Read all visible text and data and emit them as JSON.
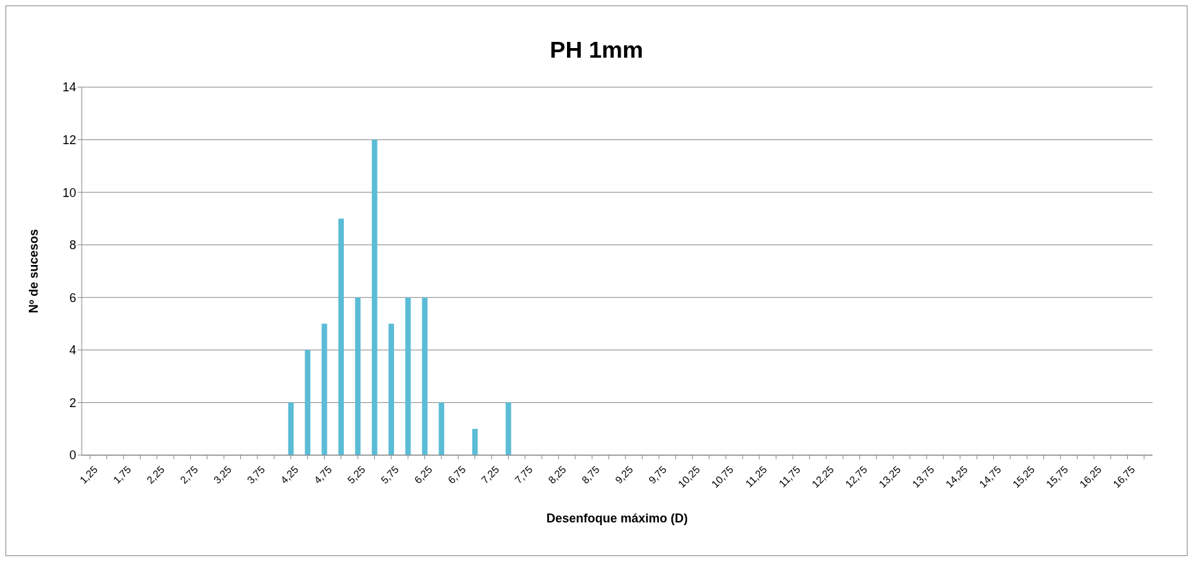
{
  "chart_data": {
    "type": "bar",
    "title": "PH 1mm",
    "xlabel": "Desenfoque máximo (D)",
    "ylabel": "Nº de sucesos",
    "categories": [
      "1,25",
      null,
      "1,75",
      null,
      "2,25",
      null,
      "2,75",
      null,
      "3,25",
      null,
      "3,75",
      null,
      "4,25",
      null,
      "4,75",
      null,
      "5,25",
      null,
      "5,75",
      null,
      "6,25",
      null,
      "6,75",
      null,
      "7,25",
      null,
      "7,75",
      null,
      "8,25",
      null,
      "8,75",
      null,
      "9,25",
      null,
      "9,75",
      null,
      "10,25",
      null,
      "10,75",
      null,
      "11,25",
      null,
      "11,75",
      null,
      "12,25",
      null,
      "12,75",
      null,
      "13,25",
      null,
      "13,75",
      null,
      "14,25",
      null,
      "14,75",
      null,
      "15,25",
      null,
      "15,75",
      null,
      "16,25",
      null,
      "16,75",
      null
    ],
    "values": [
      0,
      0,
      0,
      0,
      0,
      0,
      0,
      0,
      0,
      0,
      0,
      0,
      2,
      4,
      5,
      9,
      6,
      12,
      5,
      6,
      6,
      2,
      0,
      1,
      0,
      2,
      0,
      0,
      0,
      0,
      0,
      0,
      0,
      0,
      0,
      0,
      0,
      0,
      0,
      0,
      0,
      0,
      0,
      0,
      0,
      0,
      0,
      0,
      0,
      0,
      0,
      0,
      0,
      0,
      0,
      0,
      0,
      0,
      0,
      0,
      0,
      0,
      0,
      0
    ],
    "color": "#5bbcd6",
    "ylim": [
      0,
      14
    ],
    "yticks": [
      0,
      2,
      4,
      6,
      8,
      10,
      12,
      14
    ],
    "grid": "y"
  }
}
